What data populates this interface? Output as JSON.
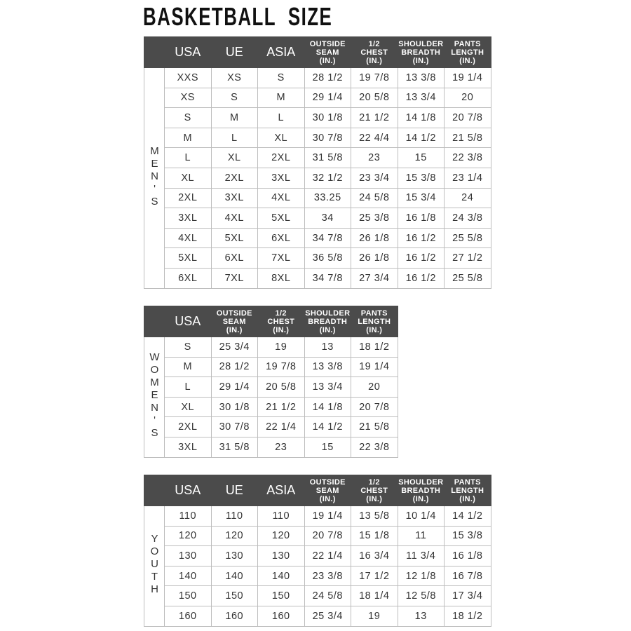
{
  "title": "BASKETBALL  SIZE",
  "colors": {
    "header_bg": "#4b4b4b",
    "header_text": "#ffffff",
    "border": "#bdbdbd"
  },
  "tables": [
    {
      "id": "mens",
      "side_label": "MEN'S",
      "headers": [
        "USA",
        "UE",
        "ASIA",
        "OUTSIDE\nSEAM\n(IN.)",
        "1/2\nCHEST\n(IN.)",
        "SHOULDER\nBREADTH\n(IN.)",
        "PANTS\nLENGTH\n(IN.)"
      ],
      "rows": [
        [
          "XXS",
          "XS",
          "S",
          "28 1/2",
          "19 7/8",
          "13 3/8",
          "19 1/4"
        ],
        [
          "XS",
          "S",
          "M",
          "29 1/4",
          "20 5/8",
          "13 3/4",
          "20"
        ],
        [
          "S",
          "M",
          "L",
          "30 1/8",
          "21 1/2",
          "14 1/8",
          "20 7/8"
        ],
        [
          "M",
          "L",
          "XL",
          "30 7/8",
          "22 4/4",
          "14 1/2",
          "21 5/8"
        ],
        [
          "L",
          "XL",
          "2XL",
          "31 5/8",
          "23",
          "15",
          "22 3/8"
        ],
        [
          "XL",
          "2XL",
          "3XL",
          "32 1/2",
          "23 3/4",
          "15 3/8",
          "23 1/4"
        ],
        [
          "2XL",
          "3XL",
          "4XL",
          "33.25",
          "24 5/8",
          "15 3/4",
          "24"
        ],
        [
          "3XL",
          "4XL",
          "5XL",
          "34",
          "25 3/8",
          "16 1/8",
          "24 3/8"
        ],
        [
          "4XL",
          "5XL",
          "6XL",
          "34 7/8",
          "26 1/8",
          "16 1/2",
          "25 5/8"
        ],
        [
          "5XL",
          "6XL",
          "7XL",
          "36 5/8",
          "26 1/8",
          "16 1/2",
          "27 1/2"
        ],
        [
          "6XL",
          "7XL",
          "8XL",
          "34 7/8",
          "27 3/4",
          "16 1/2",
          "25 5/8"
        ]
      ]
    },
    {
      "id": "womens",
      "side_label": "WOMEN'S",
      "headers": [
        "USA",
        "OUTSIDE\nSEAM\n(IN.)",
        "1/2\nCHEST\n(IN.)",
        "SHOULDER\nBREADTH\n(IN.)",
        "PANTS\nLENGTH\n(IN.)"
      ],
      "rows": [
        [
          "S",
          "25 3/4",
          "19",
          "13",
          "18 1/2"
        ],
        [
          "M",
          "28 1/2",
          "19 7/8",
          "13 3/8",
          "19 1/4"
        ],
        [
          "L",
          "29 1/4",
          "20 5/8",
          "13 3/4",
          "20"
        ],
        [
          "XL",
          "30 1/8",
          "21 1/2",
          "14 1/8",
          "20 7/8"
        ],
        [
          "2XL",
          "30 7/8",
          "22 1/4",
          "14 1/2",
          "21 5/8"
        ],
        [
          "3XL",
          "31 5/8",
          "23",
          "15",
          "22 3/8"
        ]
      ]
    },
    {
      "id": "youth",
      "side_label": "YOUTH",
      "headers": [
        "USA",
        "UE",
        "ASIA",
        "OUTSIDE\nSEAM\n(IN.)",
        "1/2\nCHEST\n(IN.)",
        "SHOULDER\nBREADTH\n(IN.)",
        "PANTS\nLENGTH\n(IN.)"
      ],
      "rows": [
        [
          "110",
          "110",
          "110",
          "19 1/4",
          "13 5/8",
          "10 1/4",
          "14 1/2"
        ],
        [
          "120",
          "120",
          "120",
          "20 7/8",
          "15 1/8",
          "11",
          "15 3/8"
        ],
        [
          "130",
          "130",
          "130",
          "22 1/4",
          "16 3/4",
          "11 3/4",
          "16 1/8"
        ],
        [
          "140",
          "140",
          "140",
          "23 3/8",
          "17 1/2",
          "12 1/8",
          "16 7/8"
        ],
        [
          "150",
          "150",
          "150",
          "24 5/8",
          "18 1/4",
          "12 5/8",
          "17 3/4"
        ],
        [
          "160",
          "160",
          "160",
          "25 3/4",
          "19",
          "13",
          "18 1/2"
        ]
      ]
    }
  ]
}
